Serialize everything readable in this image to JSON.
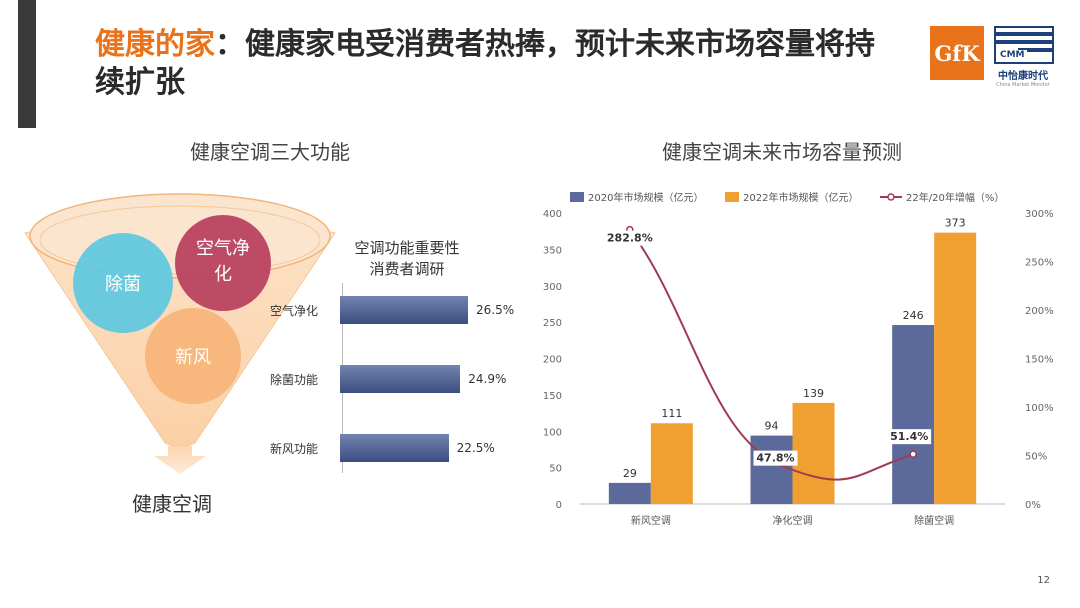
{
  "header": {
    "title_accent": "健康的家",
    "title_colon": "：",
    "title_rest": "健康家电受消费者热捧，预计未来市场容量将持续扩张",
    "logo_gfk": "GfK",
    "logo_cmm": "CMM",
    "logo_cmm_name": "中怡康时代",
    "logo_cmm_sub": "China Market Monitor"
  },
  "left": {
    "subtitle": "健康空调三大功能",
    "circles": [
      "除菌",
      "空气净化",
      "新风"
    ],
    "funnel_label": "健康空调",
    "survey_title_line1": "空调功能重要性",
    "survey_title_line2": "消费者调研"
  },
  "right": {
    "subtitle": "健康空调未来市场容量预测"
  },
  "chart_data": [
    {
      "type": "bar",
      "orientation": "horizontal",
      "title": "空调功能重要性消费者调研",
      "categories": [
        "空气净化",
        "除菌功能",
        "新风功能"
      ],
      "values": [
        26.5,
        24.9,
        22.5
      ],
      "value_labels": [
        "26.5%",
        "24.9%",
        "22.5%"
      ],
      "unit": "%",
      "color": "#4a5a8c"
    },
    {
      "type": "bar",
      "title": "健康空调未来市场容量预测",
      "categories": [
        "新风空调",
        "净化空调",
        "除菌空调"
      ],
      "series": [
        {
          "name": "2020年市场规模（亿元）",
          "values": [
            29,
            94,
            246
          ],
          "color": "#5b6a9a",
          "axis": "left"
        },
        {
          "name": "2022年市场规模（亿元）",
          "values": [
            111,
            139,
            373
          ],
          "color": "#f0a030",
          "axis": "left"
        },
        {
          "name": "22年/20年增幅（%）",
          "type": "line",
          "values": [
            282.8,
            47.8,
            51.4
          ],
          "labels": [
            "282.8%",
            "47.8%",
            "51.4%"
          ],
          "color": "#a03a55",
          "axis": "right"
        }
      ],
      "ylim_left": [
        0,
        400
      ],
      "yticks_left": [
        "0",
        "50",
        "100",
        "150",
        "200",
        "250",
        "300",
        "350",
        "400"
      ],
      "ylim_right": [
        0,
        300
      ],
      "yticks_right": [
        "0%",
        "50%",
        "100%",
        "150%",
        "200%",
        "250%",
        "300%"
      ],
      "legend": "top",
      "grid": false
    }
  ],
  "footer": {
    "page_number": "12"
  }
}
